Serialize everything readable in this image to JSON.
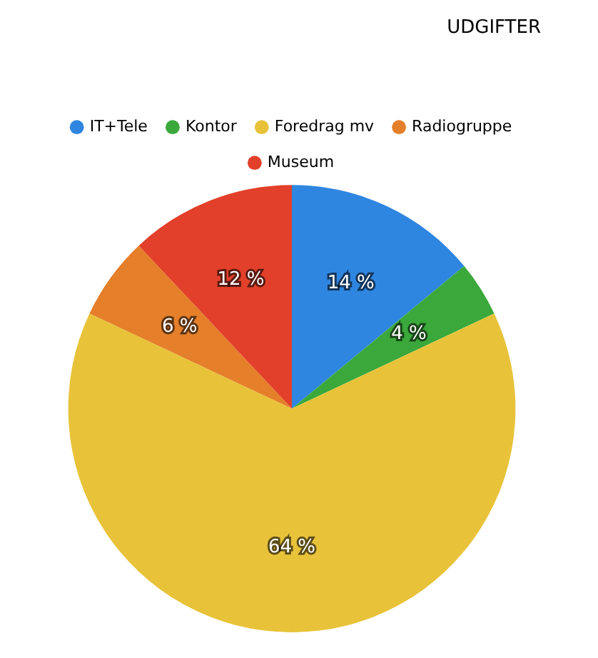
{
  "chart_data": {
    "type": "pie",
    "title": "UDGIFTER",
    "categories": [
      "IT+Tele",
      "Kontor",
      "Foredrag mv",
      "Radiogruppe",
      "Museum"
    ],
    "values": [
      14,
      4,
      64,
      6,
      12
    ],
    "colors": [
      "#2f86e0",
      "#3aa83a",
      "#e8c33a",
      "#e57f2a",
      "#e2402a"
    ],
    "value_labels": [
      "14 %",
      "4 %",
      "64 %",
      "6 %",
      "12 %"
    ],
    "legend": "top"
  }
}
